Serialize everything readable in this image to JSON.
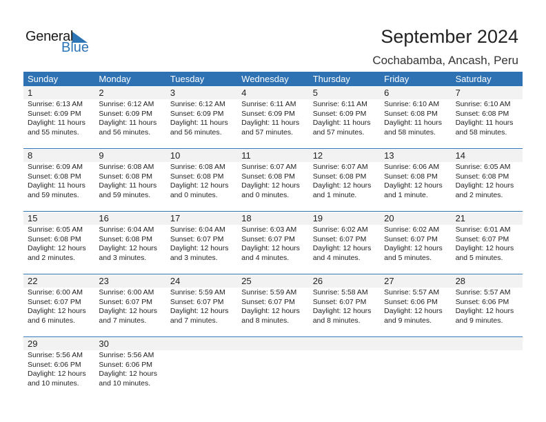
{
  "logo": {
    "general": "General",
    "blue": "Blue"
  },
  "header": {
    "title": "September 2024",
    "location": "Cochabamba, Ancash, Peru"
  },
  "colors": {
    "accent": "#2e72b4",
    "date_band": "#f2f2f2"
  },
  "weekdays": [
    "Sunday",
    "Monday",
    "Tuesday",
    "Wednesday",
    "Thursday",
    "Friday",
    "Saturday"
  ],
  "weeks": [
    [
      {
        "day": "1",
        "sunrise": "Sunrise: 6:13 AM",
        "sunset": "Sunset: 6:09 PM",
        "daylight": "Daylight: 11 hours",
        "minutes": "and 55 minutes."
      },
      {
        "day": "2",
        "sunrise": "Sunrise: 6:12 AM",
        "sunset": "Sunset: 6:09 PM",
        "daylight": "Daylight: 11 hours",
        "minutes": "and 56 minutes."
      },
      {
        "day": "3",
        "sunrise": "Sunrise: 6:12 AM",
        "sunset": "Sunset: 6:09 PM",
        "daylight": "Daylight: 11 hours",
        "minutes": "and 56 minutes."
      },
      {
        "day": "4",
        "sunrise": "Sunrise: 6:11 AM",
        "sunset": "Sunset: 6:09 PM",
        "daylight": "Daylight: 11 hours",
        "minutes": "and 57 minutes."
      },
      {
        "day": "5",
        "sunrise": "Sunrise: 6:11 AM",
        "sunset": "Sunset: 6:09 PM",
        "daylight": "Daylight: 11 hours",
        "minutes": "and 57 minutes."
      },
      {
        "day": "6",
        "sunrise": "Sunrise: 6:10 AM",
        "sunset": "Sunset: 6:08 PM",
        "daylight": "Daylight: 11 hours",
        "minutes": "and 58 minutes."
      },
      {
        "day": "7",
        "sunrise": "Sunrise: 6:10 AM",
        "sunset": "Sunset: 6:08 PM",
        "daylight": "Daylight: 11 hours",
        "minutes": "and 58 minutes."
      }
    ],
    [
      {
        "day": "8",
        "sunrise": "Sunrise: 6:09 AM",
        "sunset": "Sunset: 6:08 PM",
        "daylight": "Daylight: 11 hours",
        "minutes": "and 59 minutes."
      },
      {
        "day": "9",
        "sunrise": "Sunrise: 6:08 AM",
        "sunset": "Sunset: 6:08 PM",
        "daylight": "Daylight: 11 hours",
        "minutes": "and 59 minutes."
      },
      {
        "day": "10",
        "sunrise": "Sunrise: 6:08 AM",
        "sunset": "Sunset: 6:08 PM",
        "daylight": "Daylight: 12 hours",
        "minutes": "and 0 minutes."
      },
      {
        "day": "11",
        "sunrise": "Sunrise: 6:07 AM",
        "sunset": "Sunset: 6:08 PM",
        "daylight": "Daylight: 12 hours",
        "minutes": "and 0 minutes."
      },
      {
        "day": "12",
        "sunrise": "Sunrise: 6:07 AM",
        "sunset": "Sunset: 6:08 PM",
        "daylight": "Daylight: 12 hours",
        "minutes": "and 1 minute."
      },
      {
        "day": "13",
        "sunrise": "Sunrise: 6:06 AM",
        "sunset": "Sunset: 6:08 PM",
        "daylight": "Daylight: 12 hours",
        "minutes": "and 1 minute."
      },
      {
        "day": "14",
        "sunrise": "Sunrise: 6:05 AM",
        "sunset": "Sunset: 6:08 PM",
        "daylight": "Daylight: 12 hours",
        "minutes": "and 2 minutes."
      }
    ],
    [
      {
        "day": "15",
        "sunrise": "Sunrise: 6:05 AM",
        "sunset": "Sunset: 6:08 PM",
        "daylight": "Daylight: 12 hours",
        "minutes": "and 2 minutes."
      },
      {
        "day": "16",
        "sunrise": "Sunrise: 6:04 AM",
        "sunset": "Sunset: 6:08 PM",
        "daylight": "Daylight: 12 hours",
        "minutes": "and 3 minutes."
      },
      {
        "day": "17",
        "sunrise": "Sunrise: 6:04 AM",
        "sunset": "Sunset: 6:07 PM",
        "daylight": "Daylight: 12 hours",
        "minutes": "and 3 minutes."
      },
      {
        "day": "18",
        "sunrise": "Sunrise: 6:03 AM",
        "sunset": "Sunset: 6:07 PM",
        "daylight": "Daylight: 12 hours",
        "minutes": "and 4 minutes."
      },
      {
        "day": "19",
        "sunrise": "Sunrise: 6:02 AM",
        "sunset": "Sunset: 6:07 PM",
        "daylight": "Daylight: 12 hours",
        "minutes": "and 4 minutes."
      },
      {
        "day": "20",
        "sunrise": "Sunrise: 6:02 AM",
        "sunset": "Sunset: 6:07 PM",
        "daylight": "Daylight: 12 hours",
        "minutes": "and 5 minutes."
      },
      {
        "day": "21",
        "sunrise": "Sunrise: 6:01 AM",
        "sunset": "Sunset: 6:07 PM",
        "daylight": "Daylight: 12 hours",
        "minutes": "and 5 minutes."
      }
    ],
    [
      {
        "day": "22",
        "sunrise": "Sunrise: 6:00 AM",
        "sunset": "Sunset: 6:07 PM",
        "daylight": "Daylight: 12 hours",
        "minutes": "and 6 minutes."
      },
      {
        "day": "23",
        "sunrise": "Sunrise: 6:00 AM",
        "sunset": "Sunset: 6:07 PM",
        "daylight": "Daylight: 12 hours",
        "minutes": "and 7 minutes."
      },
      {
        "day": "24",
        "sunrise": "Sunrise: 5:59 AM",
        "sunset": "Sunset: 6:07 PM",
        "daylight": "Daylight: 12 hours",
        "minutes": "and 7 minutes."
      },
      {
        "day": "25",
        "sunrise": "Sunrise: 5:59 AM",
        "sunset": "Sunset: 6:07 PM",
        "daylight": "Daylight: 12 hours",
        "minutes": "and 8 minutes."
      },
      {
        "day": "26",
        "sunrise": "Sunrise: 5:58 AM",
        "sunset": "Sunset: 6:07 PM",
        "daylight": "Daylight: 12 hours",
        "minutes": "and 8 minutes."
      },
      {
        "day": "27",
        "sunrise": "Sunrise: 5:57 AM",
        "sunset": "Sunset: 6:06 PM",
        "daylight": "Daylight: 12 hours",
        "minutes": "and 9 minutes."
      },
      {
        "day": "28",
        "sunrise": "Sunrise: 5:57 AM",
        "sunset": "Sunset: 6:06 PM",
        "daylight": "Daylight: 12 hours",
        "minutes": "and 9 minutes."
      }
    ],
    [
      {
        "day": "29",
        "sunrise": "Sunrise: 5:56 AM",
        "sunset": "Sunset: 6:06 PM",
        "daylight": "Daylight: 12 hours",
        "minutes": "and 10 minutes."
      },
      {
        "day": "30",
        "sunrise": "Sunrise: 5:56 AM",
        "sunset": "Sunset: 6:06 PM",
        "daylight": "Daylight: 12 hours",
        "minutes": "and 10 minutes."
      }
    ]
  ]
}
